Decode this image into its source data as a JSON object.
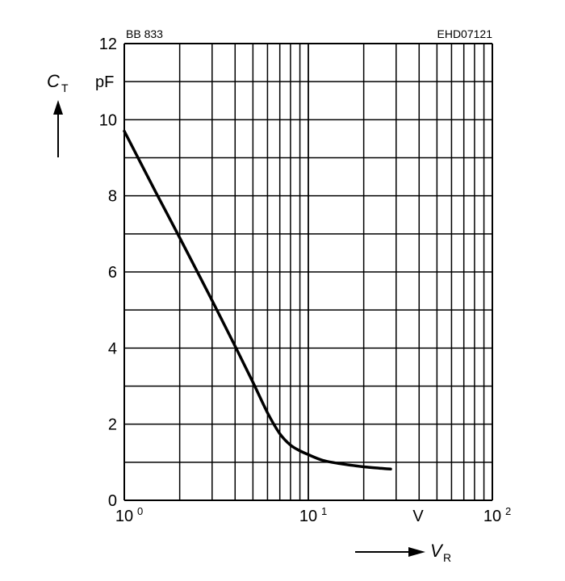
{
  "chart_data": {
    "type": "line",
    "part_number": "BB 833",
    "figure_code": "EHD07121",
    "x_scale": "log",
    "xlim": [
      1,
      100
    ],
    "ylim": [
      0,
      12
    ],
    "grid": true,
    "legend": "none",
    "x_ticks": [
      {
        "base": "10",
        "exp": "0",
        "value": 1
      },
      {
        "base": "10",
        "exp": "1",
        "value": 10
      },
      {
        "base": "10",
        "exp": "2",
        "value": 100
      }
    ],
    "x_unit": "V",
    "y_ticks": [
      "0",
      "2",
      "4",
      "6",
      "8",
      "10",
      "12"
    ],
    "y_unit": "pF",
    "ylabel": {
      "symbol": "C",
      "subscript": "T"
    },
    "xlabel": {
      "symbol": "V",
      "subscript": "R"
    },
    "series": [
      {
        "color": "#000000",
        "x": [
          1,
          1.5,
          2,
          3,
          4,
          5,
          6,
          7,
          8,
          9,
          10,
          12,
          15,
          20,
          25,
          28
        ],
        "y": [
          9.7,
          8.05,
          6.9,
          5.25,
          4.05,
          3.1,
          2.3,
          1.75,
          1.45,
          1.3,
          1.2,
          1.05,
          0.96,
          0.88,
          0.84,
          0.82
        ]
      }
    ]
  }
}
